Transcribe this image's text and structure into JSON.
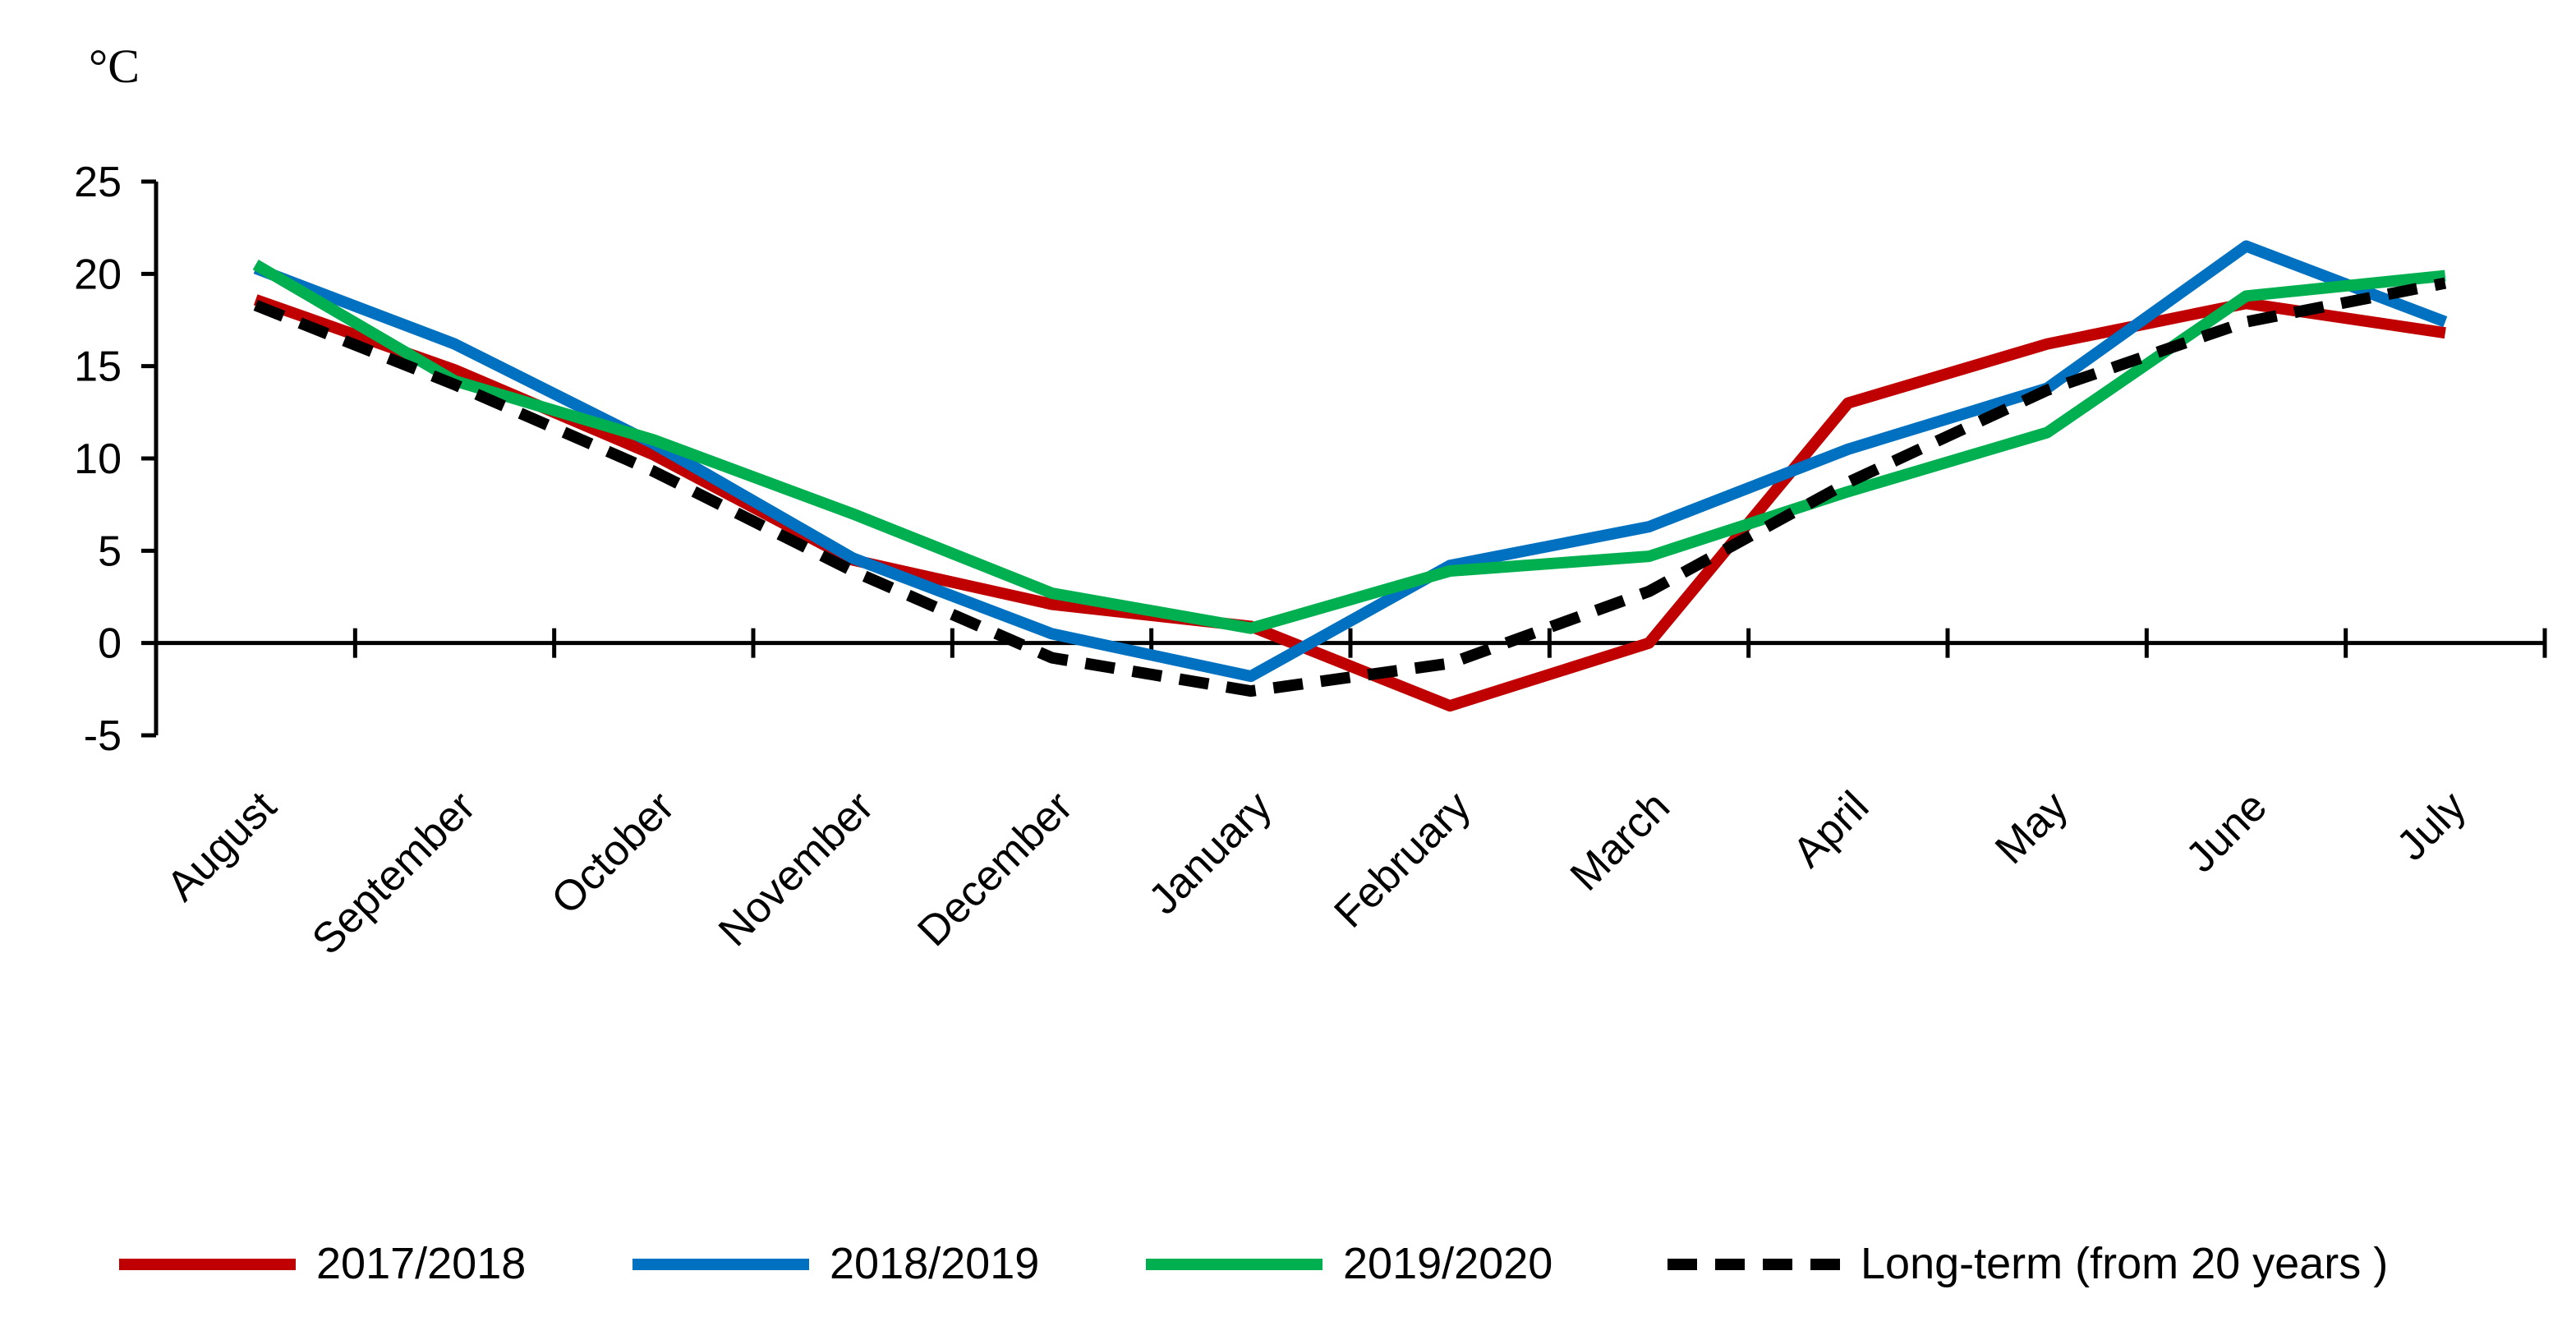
{
  "chart_data": {
    "type": "line",
    "title": "",
    "ylabel": "°C",
    "xlabel": "",
    "ylim": [
      -5,
      25
    ],
    "yticks": [
      25,
      20,
      15,
      10,
      5,
      0,
      -5
    ],
    "categories": [
      "August",
      "September",
      "October",
      "November",
      "December",
      "January",
      "February",
      "March",
      "April",
      "May",
      "June",
      "July"
    ],
    "series": [
      {
        "name": "2017/2018",
        "color": "#c00000",
        "dash": "solid",
        "values": [
          18.6,
          14.8,
          10.2,
          4.5,
          2.1,
          0.9,
          -3.4,
          0.0,
          13.0,
          16.2,
          18.4,
          16.8
        ]
      },
      {
        "name": "2018/2019",
        "color": "#0070c0",
        "dash": "solid",
        "values": [
          20.3,
          16.2,
          10.8,
          4.6,
          0.5,
          -1.8,
          4.2,
          6.3,
          10.5,
          13.8,
          21.5,
          17.4
        ]
      },
      {
        "name": "2019/2020",
        "color": "#00b050",
        "dash": "solid",
        "values": [
          20.5,
          14.2,
          11.0,
          7.0,
          2.7,
          0.8,
          3.9,
          4.7,
          8.2,
          11.4,
          18.8,
          19.9
        ]
      },
      {
        "name": "Long-term (from 20 years )",
        "color": "#000000",
        "dash": "dashed",
        "values": [
          18.3,
          14.0,
          9.3,
          3.9,
          -0.8,
          -2.6,
          -1.1,
          2.8,
          8.7,
          13.7,
          17.4,
          19.5
        ]
      }
    ],
    "legend": "bottom"
  }
}
